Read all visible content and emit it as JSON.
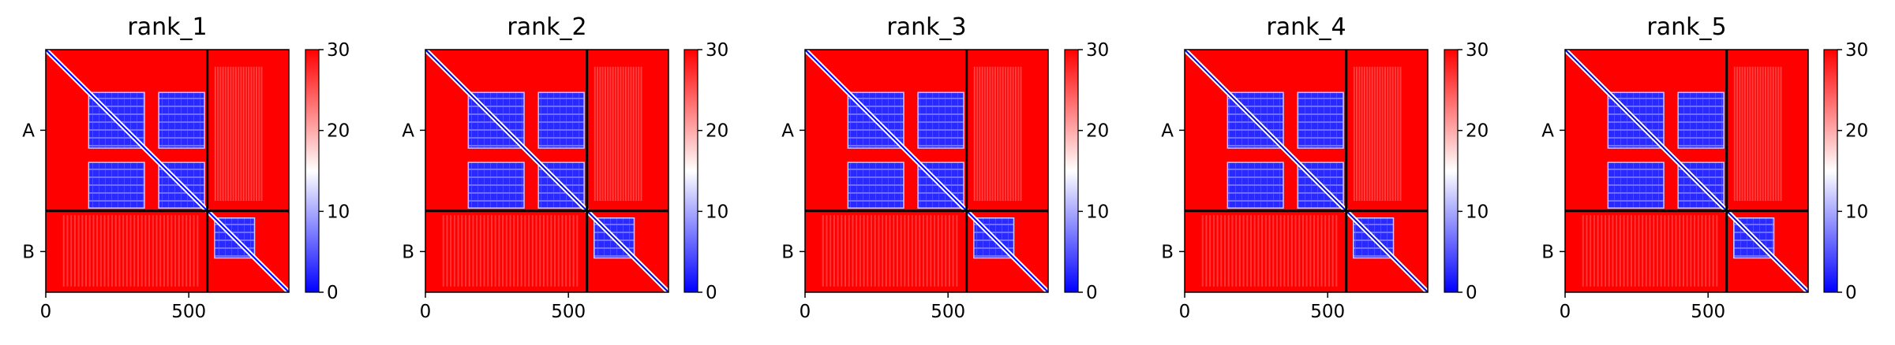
{
  "chart_data": {
    "type": "heatmap",
    "description_type": "predicted aligned error matrices",
    "shared": {
      "xlim": [
        0,
        850
      ],
      "x_ticks": [
        0,
        500
      ],
      "x_tick_labels": [
        "0",
        "500"
      ],
      "chain_boundary": 565,
      "y_tick_labels": [
        "A",
        "B"
      ],
      "colorbar": {
        "range": [
          0,
          30
        ],
        "ticks": [
          0,
          10,
          20,
          30
        ],
        "tick_labels": [
          "0",
          "10",
          "20",
          "30"
        ],
        "colors": {
          "low": "#0000ff",
          "mid": "#ffffff",
          "high": "#ff0000"
        }
      },
      "blocks": [
        {
          "r0": 150,
          "r1": 345,
          "c0": 150,
          "c1": 345
        },
        {
          "r0": 150,
          "r1": 345,
          "c0": 395,
          "c1": 555
        },
        {
          "r0": 395,
          "r1": 555,
          "c0": 150,
          "c1": 345
        },
        {
          "r0": 395,
          "r1": 555,
          "c0": 395,
          "c1": 555
        },
        {
          "r0": 590,
          "r1": 730,
          "c0": 590,
          "c1": 730
        }
      ]
    },
    "panels": [
      {
        "title": "rank_1"
      },
      {
        "title": "rank_2"
      },
      {
        "title": "rank_3"
      },
      {
        "title": "rank_4"
      },
      {
        "title": "rank_5"
      }
    ]
  }
}
